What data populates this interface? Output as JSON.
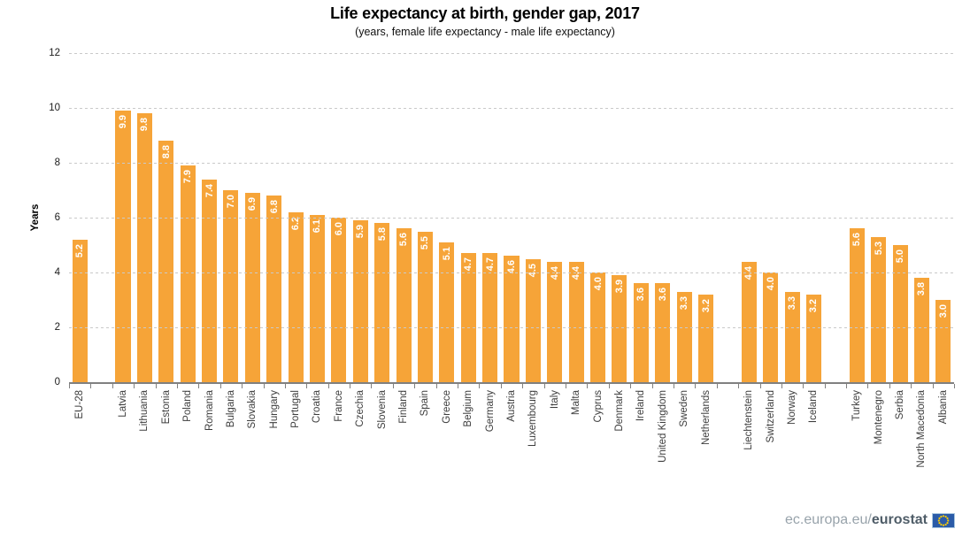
{
  "header": {
    "title": "Life expectancy at birth, gender gap, 2017",
    "subtitle": "(years, female life expectancy - male life expectancy)"
  },
  "footer": {
    "url_prefix": "ec.europa.eu/",
    "url_bold": "eurostat",
    "flag_icon": "eu-flag",
    "flag_blue": "#2B5BA8",
    "flag_star_color": "#FFCC00"
  },
  "chart_data": {
    "type": "bar",
    "title": "Life expectancy at birth, gender gap, 2017",
    "subtitle": "(years, female life expectancy - male life expectancy)",
    "xlabel": "",
    "ylabel": "Years",
    "ylim": [
      0,
      12
    ],
    "yticks": [
      0,
      2,
      4,
      6,
      8,
      10,
      12
    ],
    "grid": "horizontal-dashed",
    "legend": "none",
    "bar_color": "#F6A438",
    "value_label_color": "#FFFFFF",
    "value_label_decimals": 1,
    "categories": [
      "EU-28",
      "",
      "Latvia",
      "Lithuania",
      "Estonia",
      "Poland",
      "Romania",
      "Bulgaria",
      "Slovakia",
      "Hungary",
      "Portugal",
      "Croatia",
      "France",
      "Czechia",
      "Slovenia",
      "Finland",
      "Spain",
      "Greece",
      "Belgium",
      "Germany",
      "Austria",
      "Luxembourg",
      "Italy",
      "Malta",
      "Cyprus",
      "Denmark",
      "Ireland",
      "United Kingdom",
      "Sweden",
      "Netherlands",
      "",
      "Liechtenstein",
      "Switzerland",
      "Norway",
      "Iceland",
      "",
      "Turkey",
      "Montenegro",
      "Serbia",
      "North Macedonia",
      "Albania"
    ],
    "values": [
      5.2,
      null,
      9.9,
      9.8,
      8.8,
      7.9,
      7.4,
      7.0,
      6.9,
      6.8,
      6.2,
      6.1,
      6.0,
      5.9,
      5.8,
      5.6,
      5.5,
      5.1,
      4.7,
      4.7,
      4.6,
      4.5,
      4.4,
      4.4,
      4.0,
      3.9,
      3.6,
      3.6,
      3.3,
      3.2,
      null,
      4.4,
      4.0,
      3.3,
      3.2,
      null,
      5.6,
      5.3,
      5.0,
      3.8,
      3.0
    ]
  }
}
